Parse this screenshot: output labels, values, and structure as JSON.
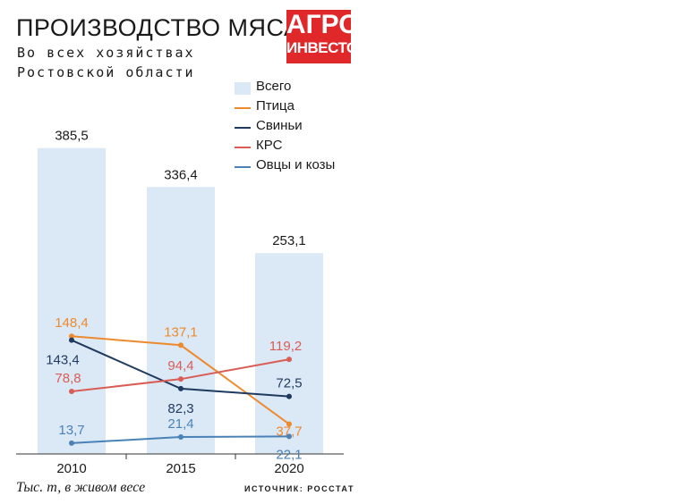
{
  "header": {
    "title": "ПРОИЗВОДСТВО МЯСА",
    "subtitle_line1": "Во всех хозяйствах",
    "subtitle_line2": "Ростовской области"
  },
  "logo": {
    "line1": "АГРО",
    "line2": "ИНВЕСТОР"
  },
  "footer": {
    "units": "Тыс. т, в живом весе",
    "source": "ИСТОЧНИК: РОССТАТ"
  },
  "colors": {
    "bar": "#dbe8f5",
    "poultry": "#ee8a2e",
    "pigs": "#1f3a5f",
    "cattle": "#d95d55",
    "sheep": "#4a82b8"
  },
  "chart_data": {
    "type": "bar",
    "categories": [
      "2010",
      "2015",
      "2020"
    ],
    "bars": {
      "name": "Всего",
      "values": [
        385.5,
        336.4,
        253.1
      ],
      "labels": [
        "385,5",
        "336,4",
        "253,1"
      ]
    },
    "series": [
      {
        "name": "Птица",
        "type": "line",
        "color": "#ee8a2e",
        "values": [
          148.4,
          137.1,
          37.7
        ],
        "labels": [
          "148,4",
          "137,1",
          "37,7"
        ]
      },
      {
        "name": "Свиньи",
        "type": "line",
        "color": "#1f3a5f",
        "values": [
          143.4,
          82.3,
          72.5
        ],
        "labels": [
          "143,4",
          "82,3",
          "72,5"
        ]
      },
      {
        "name": "КРС",
        "type": "line",
        "color": "#d95d55",
        "values": [
          78.8,
          94.4,
          119.2
        ],
        "labels": [
          "78,8",
          "94,4",
          "119,2"
        ]
      },
      {
        "name": "Овцы и козы",
        "type": "line",
        "color": "#4a82b8",
        "values": [
          13.7,
          21.4,
          22.1
        ],
        "labels": [
          "13,7",
          "21,4",
          "22,1"
        ]
      }
    ],
    "legend": [
      "Всего",
      "Птица",
      "Свиньи",
      "КРС",
      "Овцы и козы"
    ],
    "legend_position": "top-right",
    "grid": false
  }
}
